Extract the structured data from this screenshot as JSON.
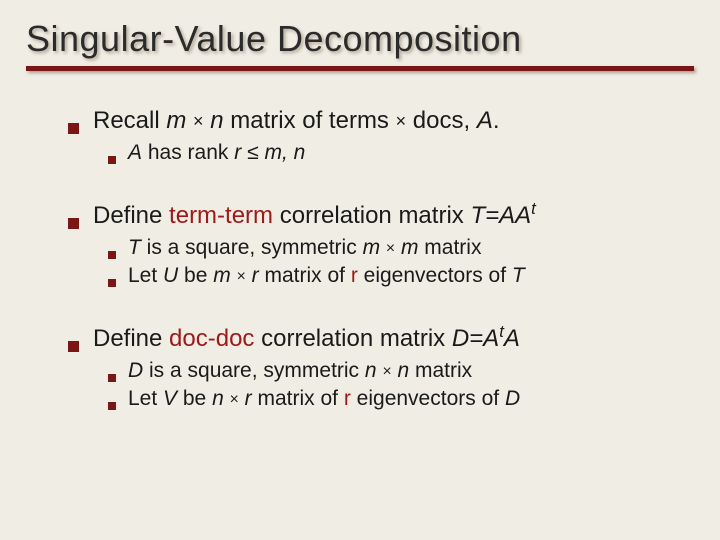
{
  "colors": {
    "background": "#f0ede4",
    "accent": "#7a1616",
    "red_text": "#9c1a1a",
    "body_text": "#1a1a1a"
  },
  "typography": {
    "title_fontsize": 36,
    "top_fontsize": 24,
    "sub_fontsize": 21,
    "font_family": "Lucida Sans / Trebuchet MS"
  },
  "title": "Singular-Value Decomposition",
  "items": [
    {
      "prefix": "Recall ",
      "var_m": "m",
      "mid1": " ",
      "op": "×",
      "mid2": " ",
      "var_n": "n",
      "mid3": " matrix of terms ",
      "op2": "×",
      "mid4": " docs, ",
      "var_a": "A",
      "suffix": ".",
      "sub": [
        {
          "var_a": "A",
          "t1": " has rank ",
          "var_r": "r",
          "t2": " ",
          "le": "≤",
          "t3": " ",
          "var_mn": "m, n"
        }
      ]
    },
    {
      "prefix": "Define ",
      "red_term": "term-term",
      "mid1": " correlation matrix ",
      "var_eq": "T=AA",
      "sup": "t",
      "sub": [
        {
          "var_t": "T",
          "t1": " is a square, symmetric ",
          "var_m": "m",
          "t2": " ",
          "op": "×",
          "t3": " ",
          "var_m2": "m",
          "t4": " matrix"
        },
        {
          "t0": "Let ",
          "var_u": "U",
          "t1": " be ",
          "var_m": "m",
          "t2": " ",
          "op": "×",
          "t3": " ",
          "var_r": "r",
          "t4": " matrix of ",
          "red_r": "r",
          "t5": " eigenvectors of ",
          "var_t": "T"
        }
      ]
    },
    {
      "prefix": "Define ",
      "red_term": "doc-doc",
      "mid1": " correlation matrix ",
      "var_eq1": "D=A",
      "sup": "t",
      "var_eq2": "A",
      "sub": [
        {
          "var_d": "D",
          "t1": " is a square, symmetric ",
          "var_n": "n",
          "t2": " ",
          "op": "×",
          "t3": " ",
          "var_n2": "n",
          "t4": " matrix"
        },
        {
          "t0": "Let ",
          "var_v": "V",
          "t1": " be ",
          "var_n": "n",
          "t2": " ",
          "op": "×",
          "t3": " ",
          "var_r": "r",
          "t4": " matrix of ",
          "red_r": "r",
          "t5": " eigenvectors of ",
          "var_d": "D"
        }
      ]
    }
  ]
}
